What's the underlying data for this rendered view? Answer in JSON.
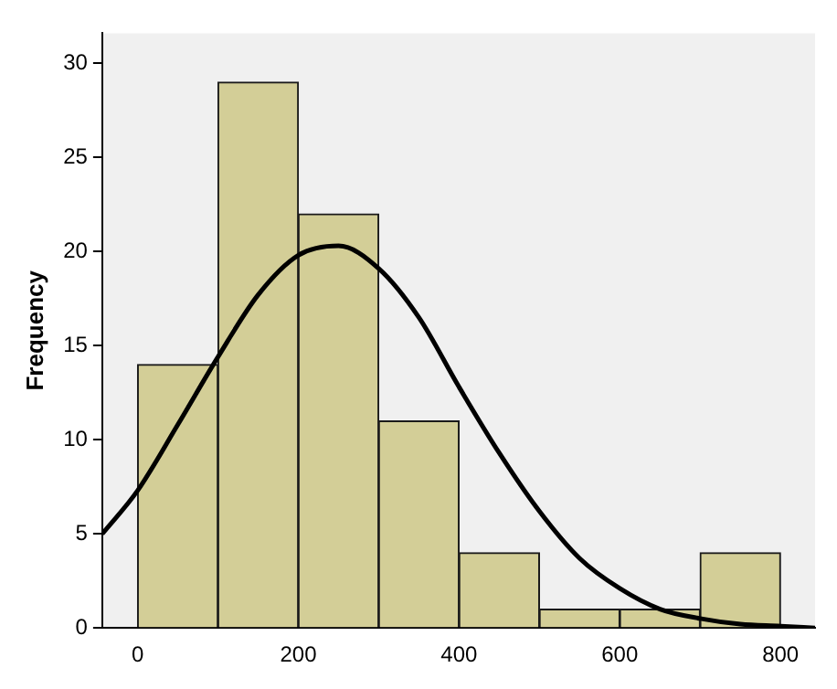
{
  "chart_data": {
    "type": "histogram",
    "ylabel": "Frequency",
    "bins": [
      0,
      100,
      200,
      300,
      400,
      500,
      600,
      700,
      800
    ],
    "values": [
      14,
      29,
      22,
      11,
      4,
      1,
      1,
      4
    ],
    "color": "#d3ce97",
    "series": [
      {
        "type": "line",
        "color": "#000000",
        "x": [
          -44,
          0,
          50,
          100,
          150,
          200,
          250,
          300,
          350,
          400,
          450,
          500,
          550,
          600,
          650,
          700,
          750,
          800,
          843
        ],
        "values": [
          5.0,
          7.3,
          10.8,
          14.4,
          17.7,
          19.8,
          20.3,
          19.1,
          16.5,
          12.8,
          9.3,
          6.2,
          3.7,
          2.1,
          1.0,
          0.5,
          0.2,
          0.1,
          0.0
        ]
      }
    ],
    "xlim": [
      -44,
      843
    ],
    "ylim": [
      0,
      31.6
    ],
    "xticks": [
      0,
      200,
      400,
      600,
      800
    ],
    "yticks": [
      0,
      5,
      10,
      15,
      20,
      25,
      30
    ],
    "grid": false,
    "legend": false,
    "marker": "none",
    "line_style": "solid"
  }
}
